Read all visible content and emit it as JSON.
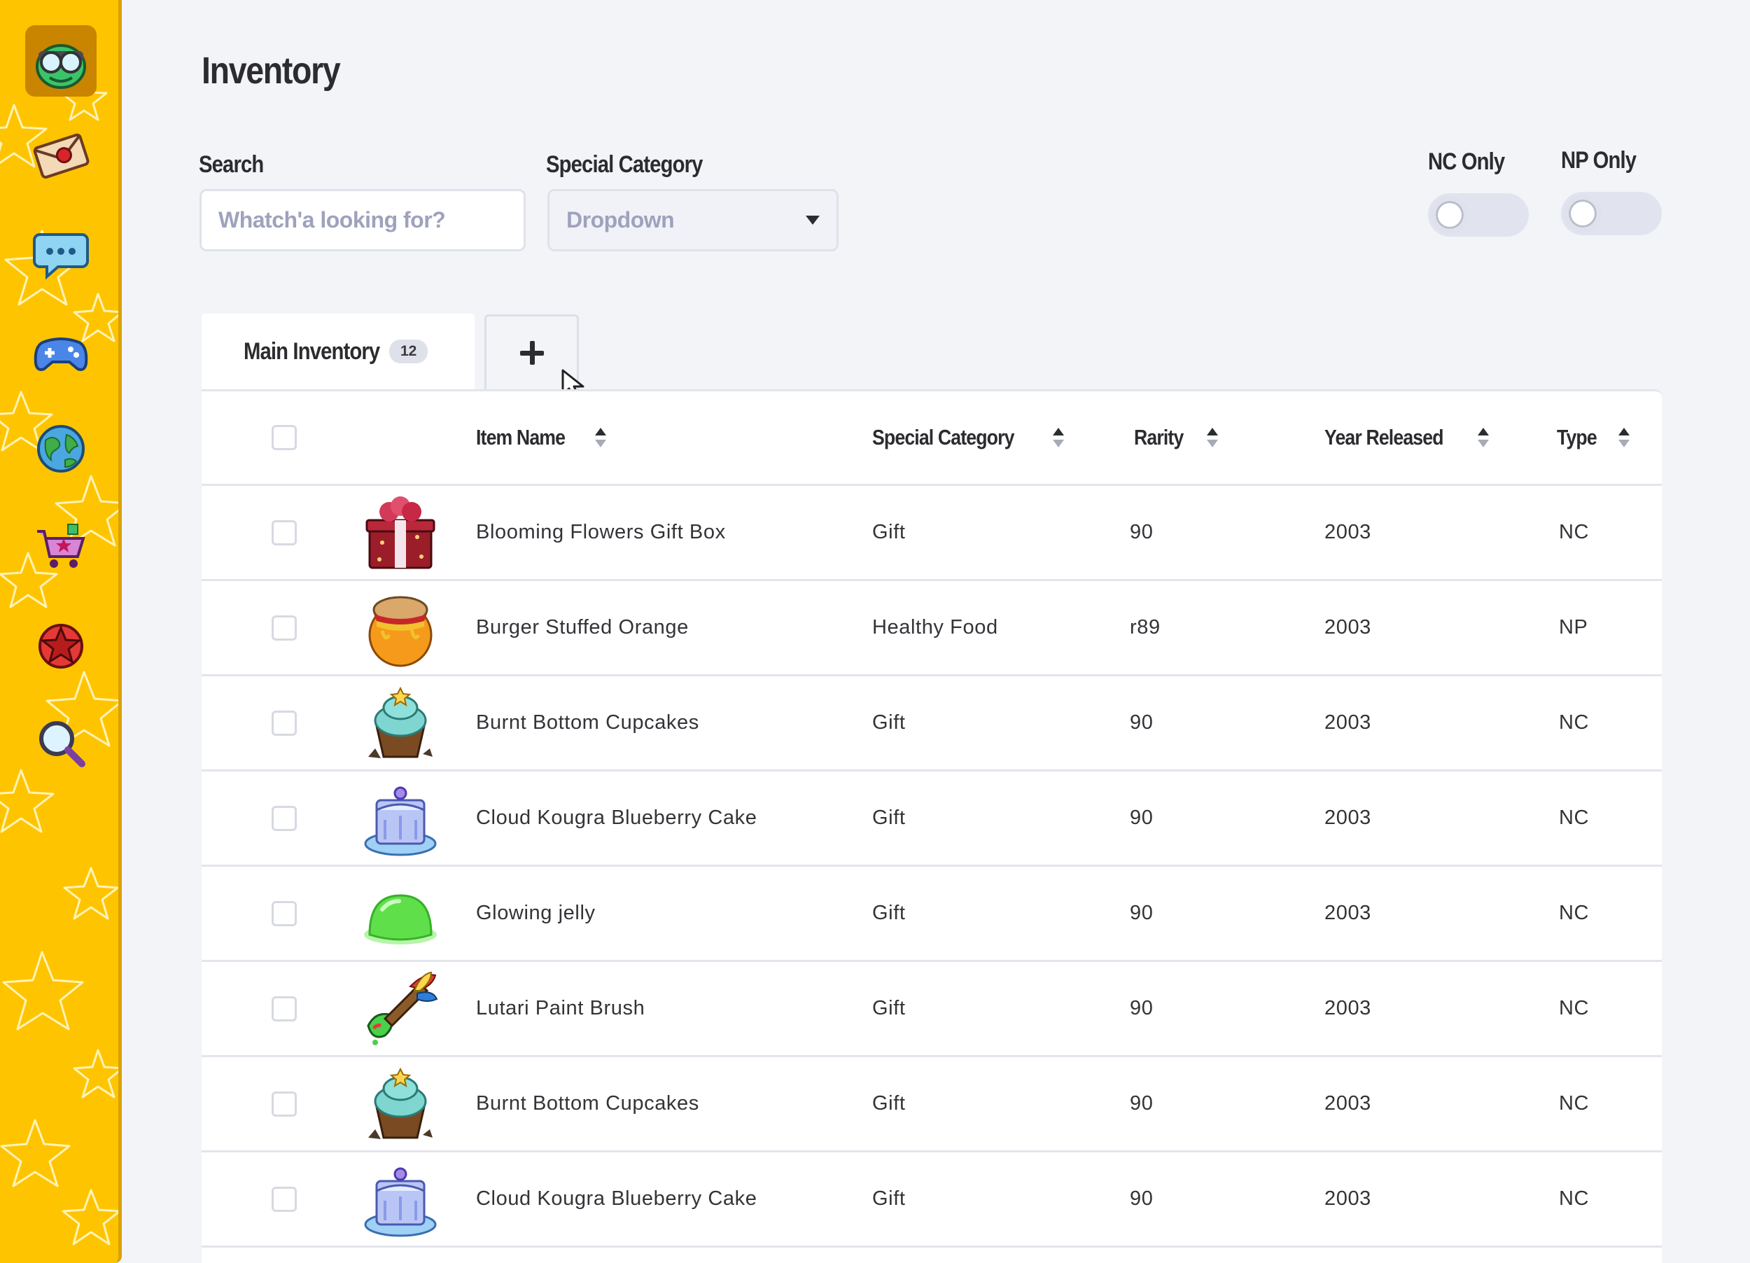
{
  "page": {
    "title": "Inventory"
  },
  "filters": {
    "search_label": "Search",
    "search_placeholder": "Whatch'a looking for?",
    "category_label": "Special Category",
    "category_value": "Dropdown",
    "nc_only_label": "NC Only",
    "nc_only_on": false,
    "np_only_label": "NP Only",
    "np_only_on": false
  },
  "sidebar": {
    "accent": "#ffc400",
    "items": [
      {
        "name": "avatar",
        "icon": "green-pet-goggles-icon",
        "active": true
      },
      {
        "name": "mail",
        "icon": "envelope-icon",
        "active": false
      },
      {
        "name": "chat",
        "icon": "speech-bubble-icon",
        "active": false
      },
      {
        "name": "games",
        "icon": "gamepad-icon",
        "active": false
      },
      {
        "name": "explore",
        "icon": "globe-icon",
        "active": false
      },
      {
        "name": "shop",
        "icon": "shopping-cart-icon",
        "active": false
      },
      {
        "name": "favorites",
        "icon": "star-badge-icon",
        "active": false
      },
      {
        "name": "search",
        "icon": "magnifier-icon",
        "active": false
      }
    ]
  },
  "tabs": {
    "main_label": "Main Inventory",
    "main_count": "12"
  },
  "table": {
    "columns": [
      "Item Name",
      "Special Category",
      "Rarity",
      "Year Released",
      "Type"
    ],
    "rows": [
      {
        "icon": "gift-box-icon",
        "name": "Blooming Flowers Gift Box",
        "category": "Gift",
        "rarity": "90",
        "year": "2003",
        "type": "NC"
      },
      {
        "icon": "burger-orange-icon",
        "name": "Burger Stuffed Orange",
        "category": "Healthy Food",
        "rarity": "r89",
        "year": "2003",
        "type": "NP"
      },
      {
        "icon": "cupcake-icon",
        "name": "Burnt Bottom Cupcakes",
        "category": "Gift",
        "rarity": "90",
        "year": "2003",
        "type": "NC"
      },
      {
        "icon": "blueberry-cake-icon",
        "name": "Cloud Kougra Blueberry Cake",
        "category": "Gift",
        "rarity": "90",
        "year": "2003",
        "type": "NC"
      },
      {
        "icon": "jelly-icon",
        "name": "Glowing jelly",
        "category": "Gift",
        "rarity": "90",
        "year": "2003",
        "type": "NC"
      },
      {
        "icon": "paint-brush-icon",
        "name": "Lutari Paint Brush",
        "category": "Gift",
        "rarity": "90",
        "year": "2003",
        "type": "NC"
      },
      {
        "icon": "cupcake-icon",
        "name": "Burnt Bottom Cupcakes",
        "category": "Gift",
        "rarity": "90",
        "year": "2003",
        "type": "NC"
      },
      {
        "icon": "blueberry-cake-icon",
        "name": "Cloud Kougra Blueberry Cake",
        "category": "Gift",
        "rarity": "90",
        "year": "2003",
        "type": "NC"
      }
    ]
  }
}
